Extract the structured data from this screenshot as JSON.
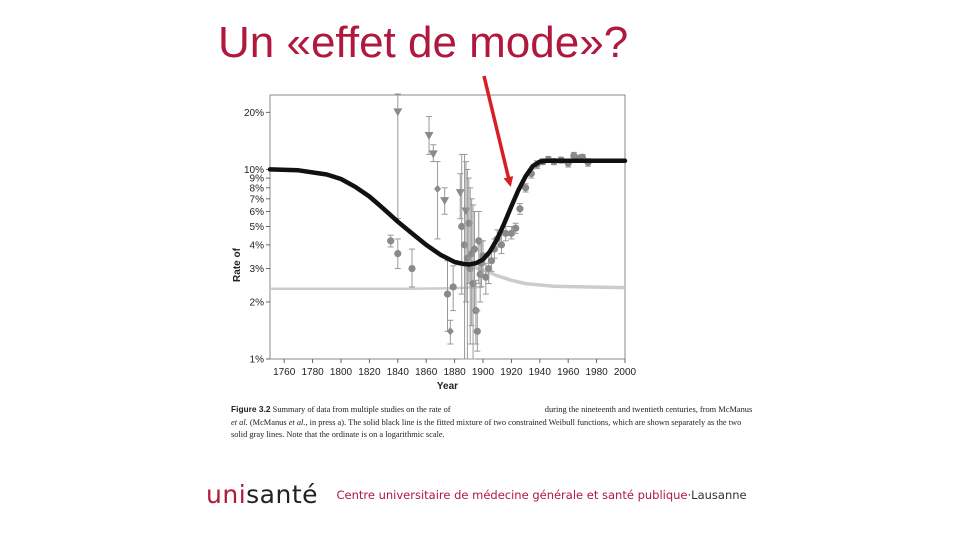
{
  "slide": {
    "title": "Un «effet de mode»?"
  },
  "figure": {
    "caption_label": "Figure 3.2",
    "caption_part1": "Summary of data from multiple studies on the rate of",
    "caption_part2": "during the nineteenth and twentieth centuries, from McManus",
    "caption_etal1": "et al.",
    "caption_part3": "(McManus",
    "caption_etal2": "et al.",
    "caption_part4": ", in press a). The solid black line is the fitted mixture of two constrained Weibull functions, which are shown separately as the two solid gray lines. Note that the ordinate is on a logarithmic scale."
  },
  "footer": {
    "logo_uni": "uni",
    "logo_sante": "santé",
    "org_name": "Centre universitaire de médecine générale et santé publique",
    "separator": "·",
    "city": "Lausanne"
  },
  "colors": {
    "title": "#b0183e",
    "arrow": "#d81f26",
    "fit_line": "#111111",
    "gray_lines": "#cccccc",
    "points": "#8a8a8a"
  },
  "chart_data": {
    "type": "scatter",
    "xlabel": "Year",
    "ylabel": "Rate of",
    "x_ticks": [
      1760,
      1780,
      1800,
      1820,
      1840,
      1860,
      1880,
      1900,
      1920,
      1940,
      1960,
      1980,
      2000
    ],
    "xlim": [
      1750,
      2000
    ],
    "y_scale": "log",
    "y_ticks": [
      {
        "v": 20,
        "label": "20%"
      },
      {
        "v": 10,
        "label": "10%"
      },
      {
        "v": 9,
        "label": "9%"
      },
      {
        "v": 8,
        "label": "8%"
      },
      {
        "v": 7,
        "label": "7%"
      },
      {
        "v": 6,
        "label": "6%"
      },
      {
        "v": 5,
        "label": "5%"
      },
      {
        "v": 4,
        "label": "4%"
      },
      {
        "v": 3,
        "label": "3%"
      },
      {
        "v": 2,
        "label": "2%"
      },
      {
        "v": 1,
        "label": "1%"
      }
    ],
    "ylim": [
      1,
      25
    ],
    "fit_line": {
      "x": [
        1750,
        1770,
        1790,
        1800,
        1810,
        1820,
        1830,
        1840,
        1850,
        1860,
        1870,
        1880,
        1886,
        1890,
        1895,
        1900,
        1905,
        1910,
        1915,
        1920,
        1925,
        1930,
        1935,
        1940,
        1945,
        1950,
        1960,
        1980,
        2000
      ],
      "y": [
        10,
        9.9,
        9.4,
        8.9,
        8.1,
        7.2,
        6.2,
        5.3,
        4.6,
        4.0,
        3.55,
        3.25,
        3.18,
        3.15,
        3.2,
        3.35,
        3.7,
        4.3,
        5.2,
        6.4,
        7.8,
        9.2,
        10.4,
        11.0,
        11.1,
        11.1,
        11.1,
        11.1,
        11.1
      ]
    },
    "gray_line_flat": {
      "x": [
        1750,
        1800,
        1850,
        1880,
        1900
      ],
      "y": [
        2.35,
        2.35,
        2.35,
        2.36,
        2.4
      ]
    },
    "gray_line_decline": {
      "x": [
        1880,
        1890,
        1900,
        1910,
        1920,
        1930,
        1950,
        1970,
        2000
      ],
      "y": [
        3.2,
        3.1,
        2.95,
        2.75,
        2.6,
        2.5,
        2.42,
        2.4,
        2.38
      ]
    },
    "points": [
      {
        "x": 1835,
        "y": 4.2,
        "lo": 3.9,
        "hi": 4.5,
        "shape": "hex"
      },
      {
        "x": 1840,
        "y": 3.6,
        "lo": 3.0,
        "hi": 4.3,
        "shape": "hex"
      },
      {
        "x": 1840,
        "y": 20,
        "lo": 5.5,
        "hi": 25,
        "shape": "tri"
      },
      {
        "x": 1850,
        "y": 3.0,
        "lo": 2.4,
        "hi": 3.8,
        "shape": "hex"
      },
      {
        "x": 1862,
        "y": 15,
        "lo": 12,
        "hi": 19,
        "shape": "tri"
      },
      {
        "x": 1865,
        "y": 12,
        "lo": 11,
        "hi": 13.5,
        "shape": "tri"
      },
      {
        "x": 1868,
        "y": 7.9,
        "lo": 4.3,
        "hi": 11,
        "shape": "diamond"
      },
      {
        "x": 1873,
        "y": 6.8,
        "lo": 5.8,
        "hi": 8,
        "shape": "tri"
      },
      {
        "x": 1875,
        "y": 2.2,
        "lo": 1.4,
        "hi": 3.3,
        "shape": "hex"
      },
      {
        "x": 1877,
        "y": 1.4,
        "lo": 1.2,
        "hi": 1.6,
        "shape": "diamond"
      },
      {
        "x": 1879,
        "y": 2.4,
        "lo": 1.8,
        "hi": 3.1,
        "shape": "hex"
      },
      {
        "x": 1884,
        "y": 7.5,
        "lo": 5.5,
        "hi": 9.5,
        "shape": "tri"
      },
      {
        "x": 1885,
        "y": 5.0,
        "lo": 2.2,
        "hi": 12,
        "shape": "hex"
      },
      {
        "x": 1887,
        "y": 4.0,
        "lo": 1.0,
        "hi": 12,
        "shape": "hex"
      },
      {
        "x": 1888,
        "y": 6.0,
        "lo": 2.0,
        "hi": 11,
        "shape": "tri"
      },
      {
        "x": 1889,
        "y": 3.4,
        "lo": 1.0,
        "hi": 10,
        "shape": "hex"
      },
      {
        "x": 1890,
        "y": 5.2,
        "lo": 2.5,
        "hi": 9,
        "shape": "hex"
      },
      {
        "x": 1891,
        "y": 3.0,
        "lo": 1.2,
        "hi": 8,
        "shape": "hex"
      },
      {
        "x": 1892,
        "y": 3.6,
        "lo": 1.5,
        "hi": 7,
        "shape": "hex"
      },
      {
        "x": 1893,
        "y": 2.5,
        "lo": 1.0,
        "hi": 6.5,
        "shape": "hex"
      },
      {
        "x": 1894,
        "y": 3.8,
        "lo": 1.8,
        "hi": 6,
        "shape": "hex"
      },
      {
        "x": 1895,
        "y": 1.8,
        "lo": 1.2,
        "hi": 2.6,
        "shape": "hex"
      },
      {
        "x": 1896,
        "y": 1.4,
        "lo": 1.1,
        "hi": 1.8,
        "shape": "hex"
      },
      {
        "x": 1897,
        "y": 4.2,
        "lo": 2.5,
        "hi": 6,
        "shape": "hex"
      },
      {
        "x": 1898,
        "y": 2.8,
        "lo": 2.0,
        "hi": 4.0,
        "shape": "hex"
      },
      {
        "x": 1899,
        "y": 3.2,
        "lo": 2.4,
        "hi": 4.2,
        "shape": "hex"
      },
      {
        "x": 1900,
        "y": 3.5,
        "lo": 2.8,
        "hi": 4.2,
        "shape": "hex"
      },
      {
        "x": 1902,
        "y": 2.7,
        "lo": 2.2,
        "hi": 3.2,
        "shape": "hex"
      },
      {
        "x": 1904,
        "y": 3.0,
        "lo": 2.5,
        "hi": 3.5,
        "shape": "hex"
      },
      {
        "x": 1906,
        "y": 3.3,
        "lo": 2.9,
        "hi": 3.8,
        "shape": "hex"
      },
      {
        "x": 1908,
        "y": 3.8,
        "lo": 3.4,
        "hi": 4.3,
        "shape": "hex"
      },
      {
        "x": 1910,
        "y": 4.3,
        "lo": 3.9,
        "hi": 4.8,
        "shape": "hex"
      },
      {
        "x": 1913,
        "y": 4.0,
        "lo": 3.6,
        "hi": 4.5,
        "shape": "hex"
      },
      {
        "x": 1916,
        "y": 4.6,
        "lo": 4.2,
        "hi": 5.0,
        "shape": "hex"
      },
      {
        "x": 1920,
        "y": 4.6,
        "lo": 4.3,
        "hi": 5.0,
        "shape": "hex"
      },
      {
        "x": 1923,
        "y": 4.9,
        "lo": 4.6,
        "hi": 5.2,
        "shape": "hex"
      },
      {
        "x": 1926,
        "y": 6.2,
        "lo": 5.8,
        "hi": 6.6,
        "shape": "hex"
      },
      {
        "x": 1930,
        "y": 8.0,
        "lo": 7.6,
        "hi": 8.4,
        "shape": "hex"
      },
      {
        "x": 1934,
        "y": 9.5,
        "lo": 9.0,
        "hi": 10,
        "shape": "hex"
      },
      {
        "x": 1938,
        "y": 10.6,
        "lo": 10.1,
        "hi": 11.1,
        "shape": "hex"
      },
      {
        "x": 1942,
        "y": 11.0,
        "lo": 10.6,
        "hi": 11.4,
        "shape": "hex"
      },
      {
        "x": 1946,
        "y": 11.3,
        "lo": 10.9,
        "hi": 11.7,
        "shape": "hex"
      },
      {
        "x": 1950,
        "y": 11.0,
        "lo": 10.6,
        "hi": 11.4,
        "shape": "hex"
      },
      {
        "x": 1955,
        "y": 11.2,
        "lo": 10.8,
        "hi": 11.6,
        "shape": "hex"
      },
      {
        "x": 1960,
        "y": 10.8,
        "lo": 10.3,
        "hi": 11.3,
        "shape": "hex"
      },
      {
        "x": 1964,
        "y": 11.8,
        "lo": 11.3,
        "hi": 12.3,
        "shape": "hex"
      },
      {
        "x": 1967,
        "y": 11.4,
        "lo": 11.0,
        "hi": 11.9,
        "shape": "hex"
      },
      {
        "x": 1970,
        "y": 11.6,
        "lo": 11.2,
        "hi": 12.0,
        "shape": "hex"
      },
      {
        "x": 1974,
        "y": 10.9,
        "lo": 10.4,
        "hi": 11.4,
        "shape": "hex"
      }
    ],
    "annotation": "red arrow pointing to the steep rise around 1920"
  }
}
